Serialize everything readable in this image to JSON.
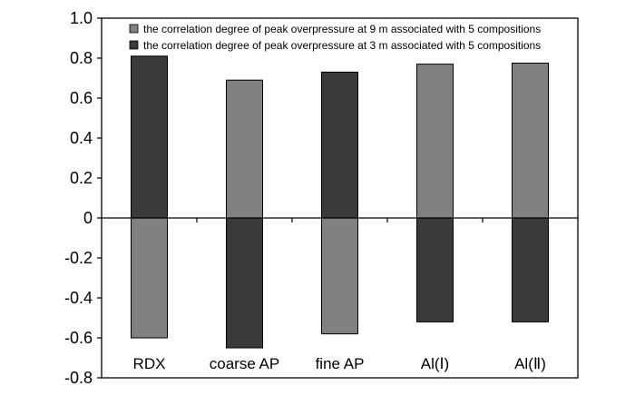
{
  "chart_data": {
    "type": "bar",
    "categories": [
      "RDX",
      "coarse AP",
      "fine AP",
      "Al(Ⅰ)",
      "Al(Ⅱ)"
    ],
    "series": [
      {
        "name": "the correlation degree of peak overpressure at 9 m associated with 5 compositions",
        "color": "#808080",
        "values": [
          -0.6,
          0.69,
          -0.58,
          0.77,
          0.775
        ]
      },
      {
        "name": "the correlation degree of peak overpressure at 3 m associated with 5 compositions",
        "color": "#3a3a3a",
        "values": [
          0.81,
          -0.65,
          0.73,
          -0.52,
          -0.52
        ]
      }
    ],
    "ylim": [
      -0.8,
      1.0
    ],
    "yticks": [
      -0.8,
      -0.6,
      -0.4,
      -0.2,
      0,
      0.2,
      0.4,
      0.6,
      0.8,
      1.0
    ],
    "ytick_labels": [
      "-0.8",
      "-0.6",
      "-0.4",
      "-0.2",
      "0",
      "0.2",
      "0.4",
      "0.6",
      "0.8",
      "1.0"
    ],
    "legend": "top-right",
    "grid": false
  }
}
